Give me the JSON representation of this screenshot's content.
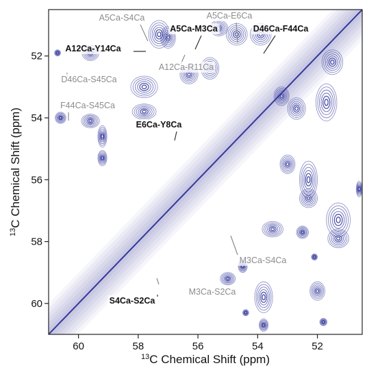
{
  "chart_data": {
    "type": "contour",
    "xlabel_sup": "13",
    "xlabel_text": "C Chemical Shift (ppm)",
    "ylabel_sup": "13",
    "ylabel_text": "C Chemical Shift (ppm)",
    "xlim": [
      61.0,
      50.5
    ],
    "ylim": [
      50.5,
      61.0
    ],
    "x_reversed": true,
    "y_reversed": true,
    "x_ticks": [
      "60",
      "58",
      "56",
      "54",
      "52"
    ],
    "y_ticks": [
      "52",
      "54",
      "56",
      "58",
      "60"
    ],
    "contour_color": "#3b3f9e",
    "diagonal": true,
    "cross_peaks": [
      {
        "label": "A5Ca-S4Ca",
        "x": 57.2,
        "y": 51.3,
        "label_color": "gray"
      },
      {
        "label": "A5Ca-M3Ca",
        "x": 55.8,
        "y": 51.0,
        "label_color": "black"
      },
      {
        "label": "A5Ca-E6Ca",
        "x": 54.5,
        "y": 51.2,
        "label_color": "gray"
      },
      {
        "label": "D46Ca-F44Ca",
        "x": 53.3,
        "y": 51.5,
        "label_color": "black"
      },
      {
        "label": "A12Ca-Y14Ca",
        "x": 57.6,
        "y": 51.4,
        "label_color": "black"
      },
      {
        "label": "A12Ca-R11Ca",
        "x": 55.3,
        "y": 51.3,
        "label_color": "gray"
      },
      {
        "label": "D46Ca-S45Ca",
        "x": 59.5,
        "y": 52.0,
        "label_color": "gray"
      },
      {
        "label": "F44Ca-S45Ca",
        "x": 59.6,
        "y": 54.0,
        "label_color": "gray"
      },
      {
        "label": "E6Ca-Y8Ca",
        "x": 57.4,
        "y": 55.0,
        "label_color": "black"
      },
      {
        "label": "M3Ca-S4Ca",
        "x": 55.4,
        "y": 57.3,
        "label_color": "gray"
      },
      {
        "label": "M3Ca-S2Ca",
        "x": 57.3,
        "y": 59.4,
        "label_color": "gray"
      },
      {
        "label": "S4Ca-S2Ca",
        "x": 59.2,
        "y": 59.8,
        "label_color": "black"
      }
    ],
    "peaks": [
      {
        "x": 57.3,
        "y": 51.3,
        "w": 0.35,
        "h": 0.45
      },
      {
        "x": 57.0,
        "y": 51.4,
        "w": 0.25,
        "h": 0.35
      },
      {
        "x": 54.7,
        "y": 51.3,
        "w": 0.35,
        "h": 0.35
      },
      {
        "x": 55.3,
        "y": 51.1,
        "w": 0.3,
        "h": 0.25
      },
      {
        "x": 53.9,
        "y": 51.3,
        "w": 0.35,
        "h": 0.35
      },
      {
        "x": 55.6,
        "y": 52.4,
        "w": 0.3,
        "h": 0.35
      },
      {
        "x": 56.3,
        "y": 52.6,
        "w": 0.3,
        "h": 0.3
      },
      {
        "x": 59.6,
        "y": 51.9,
        "w": 0.28,
        "h": 0.25
      },
      {
        "x": 60.7,
        "y": 51.9,
        "w": 0.1,
        "h": 0.1
      },
      {
        "x": 57.8,
        "y": 53.0,
        "w": 0.45,
        "h": 0.35
      },
      {
        "x": 57.8,
        "y": 53.8,
        "w": 0.4,
        "h": 0.25
      },
      {
        "x": 59.6,
        "y": 54.1,
        "w": 0.3,
        "h": 0.22
      },
      {
        "x": 60.6,
        "y": 54.0,
        "w": 0.18,
        "h": 0.18
      },
      {
        "x": 59.2,
        "y": 54.6,
        "w": 0.15,
        "h": 0.35
      },
      {
        "x": 59.2,
        "y": 55.3,
        "w": 0.15,
        "h": 0.25
      },
      {
        "x": 51.7,
        "y": 53.5,
        "w": 0.35,
        "h": 0.6
      },
      {
        "x": 52.7,
        "y": 53.7,
        "w": 0.3,
        "h": 0.35
      },
      {
        "x": 53.2,
        "y": 53.3,
        "w": 0.25,
        "h": 0.3
      },
      {
        "x": 51.5,
        "y": 52.2,
        "w": 0.35,
        "h": 0.4
      },
      {
        "x": 53.0,
        "y": 55.5,
        "w": 0.25,
        "h": 0.3
      },
      {
        "x": 52.3,
        "y": 56.0,
        "w": 0.3,
        "h": 0.6
      },
      {
        "x": 52.3,
        "y": 56.6,
        "w": 0.3,
        "h": 0.3
      },
      {
        "x": 51.3,
        "y": 57.3,
        "w": 0.4,
        "h": 0.55
      },
      {
        "x": 51.3,
        "y": 57.9,
        "w": 0.35,
        "h": 0.3
      },
      {
        "x": 53.5,
        "y": 57.6,
        "w": 0.35,
        "h": 0.25
      },
      {
        "x": 52.5,
        "y": 57.7,
        "w": 0.2,
        "h": 0.2
      },
      {
        "x": 55.0,
        "y": 59.2,
        "w": 0.25,
        "h": 0.2
      },
      {
        "x": 54.5,
        "y": 58.8,
        "w": 0.15,
        "h": 0.2
      },
      {
        "x": 53.8,
        "y": 59.8,
        "w": 0.3,
        "h": 0.5
      },
      {
        "x": 53.8,
        "y": 60.7,
        "w": 0.15,
        "h": 0.2
      },
      {
        "x": 52.0,
        "y": 59.6,
        "w": 0.25,
        "h": 0.3
      },
      {
        "x": 51.8,
        "y": 60.6,
        "w": 0.12,
        "h": 0.12
      },
      {
        "x": 50.6,
        "y": 56.3,
        "w": 0.1,
        "h": 0.25
      },
      {
        "x": 52.1,
        "y": 58.5,
        "w": 0.1,
        "h": 0.1
      },
      {
        "x": 54.4,
        "y": 60.3,
        "w": 0.1,
        "h": 0.1
      }
    ]
  }
}
